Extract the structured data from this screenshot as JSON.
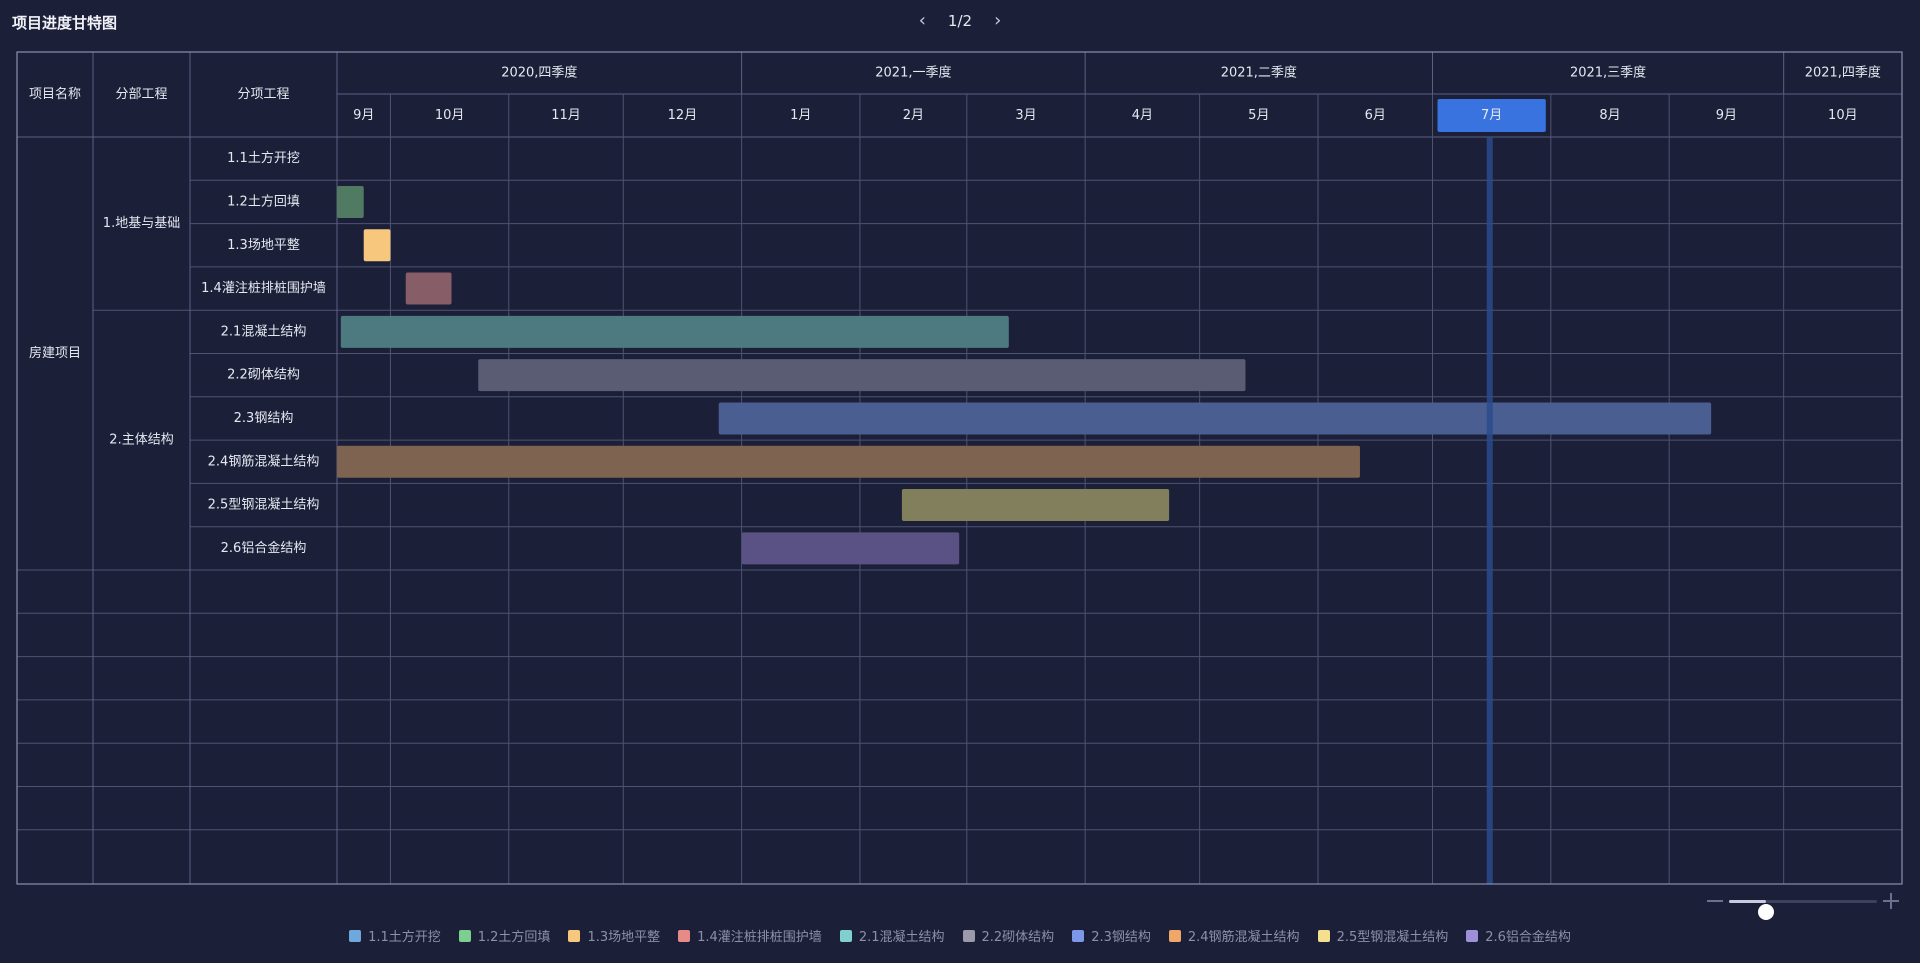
{
  "title": "项目进度甘特图",
  "pager": {
    "text": "1/2",
    "prev_icon": "chevron-left-icon",
    "next_icon": "chevron-right-icon"
  },
  "header_labels": {
    "project": "项目名称",
    "division": "分部工程",
    "subitem": "分项工程"
  },
  "project_name": "房建项目",
  "divisions": [
    {
      "name": "1.地基与基础",
      "rows": 4
    },
    {
      "name": "2.主体结构",
      "rows": 6
    }
  ],
  "colors": {
    "today_line": "#2a4b8d",
    "highlight_month": "#3873e0"
  },
  "chart_data": {
    "type": "gantt",
    "quarters": [
      {
        "label": "2020,四季度",
        "months": 4
      },
      {
        "label": "2021,一季度",
        "months": 3
      },
      {
        "label": "2021,二季度",
        "months": 3
      },
      {
        "label": "2021,三季度",
        "months": 3
      },
      {
        "label": "2021,四季度",
        "months": 1
      }
    ],
    "months": [
      {
        "label": "9月",
        "start": "2020-09-17",
        "end": "2020-10-01"
      },
      {
        "label": "10月",
        "start": "2020-10-01",
        "end": "2020-11-01"
      },
      {
        "label": "11月",
        "start": "2020-11-01",
        "end": "2020-12-01"
      },
      {
        "label": "12月",
        "start": "2020-12-01",
        "end": "2021-01-01"
      },
      {
        "label": "1月",
        "start": "2021-01-01",
        "end": "2021-02-01"
      },
      {
        "label": "2月",
        "start": "2021-02-01",
        "end": "2021-03-01"
      },
      {
        "label": "3月",
        "start": "2021-03-01",
        "end": "2021-04-01"
      },
      {
        "label": "4月",
        "start": "2021-04-01",
        "end": "2021-05-01"
      },
      {
        "label": "5月",
        "start": "2021-05-01",
        "end": "2021-06-01"
      },
      {
        "label": "6月",
        "start": "2021-06-01",
        "end": "2021-07-01"
      },
      {
        "label": "7月",
        "start": "2021-07-01",
        "end": "2021-08-01"
      },
      {
        "label": "8月",
        "start": "2021-08-01",
        "end": "2021-09-01"
      },
      {
        "label": "9月",
        "start": "2021-09-01",
        "end": "2021-10-01"
      },
      {
        "label": "10月",
        "start": "2021-10-01",
        "end": "2021-11-01"
      }
    ],
    "highlight_month": "7月",
    "today": "2021-07-16",
    "tasks": [
      {
        "name": "1.1土方开挖",
        "start": null,
        "end": null,
        "color": "#6fa8dc",
        "bar": "#3c5b86"
      },
      {
        "name": "1.2土方回填",
        "start": "2020-09-17",
        "end": "2020-09-24",
        "color": "#7bcf8f",
        "bar": "#517a63"
      },
      {
        "name": "1.3场地平整",
        "start": "2020-09-24",
        "end": "2020-10-01",
        "color": "#f6c77d",
        "bar": "#f6c77d"
      },
      {
        "name": "1.4灌注桩排桩围护墙",
        "start": "2020-10-05",
        "end": "2020-10-17",
        "color": "#e88a87",
        "bar": "#875d68"
      },
      {
        "name": "2.1混凝土结构",
        "start": "2020-09-18",
        "end": "2021-03-12",
        "color": "#7fd0ce",
        "bar": "#4d7a80"
      },
      {
        "name": "2.2砌体结构",
        "start": "2020-10-24",
        "end": "2021-05-13",
        "color": "#9a9aaa",
        "bar": "#5a5c73"
      },
      {
        "name": "2.3钢结构",
        "start": "2020-12-26",
        "end": "2021-09-12",
        "color": "#7d98e8",
        "bar": "#4a5e92"
      },
      {
        "name": "2.4钢筋混凝土结构",
        "start": "2020-09-17",
        "end": "2021-06-12",
        "color": "#f0a76a",
        "bar": "#7d6350"
      },
      {
        "name": "2.5型钢混凝土结构",
        "start": "2021-02-12",
        "end": "2021-04-23",
        "color": "#f5e08d",
        "bar": "#82805c"
      },
      {
        "name": "2.6铝合金结构",
        "start": "2021-01-01",
        "end": "2021-02-27",
        "color": "#9d8fd8",
        "bar": "#5a5284"
      }
    ]
  },
  "zoom": {
    "level": 0.22
  }
}
